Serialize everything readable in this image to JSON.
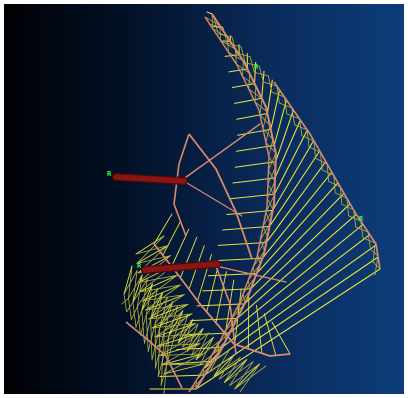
{
  "colors": {
    "background_left": "#010104",
    "background_right": "#0c3d79",
    "truss": "#e8e23a",
    "truss_dark": "#b7b23a",
    "rib": "#d88a70",
    "arm": "#8b1414",
    "marker": "#3cff3c"
  },
  "markers": [
    {
      "label": "R"
    },
    {
      "label": "R"
    },
    {
      "label": "R"
    },
    {
      "label": "R"
    }
  ]
}
